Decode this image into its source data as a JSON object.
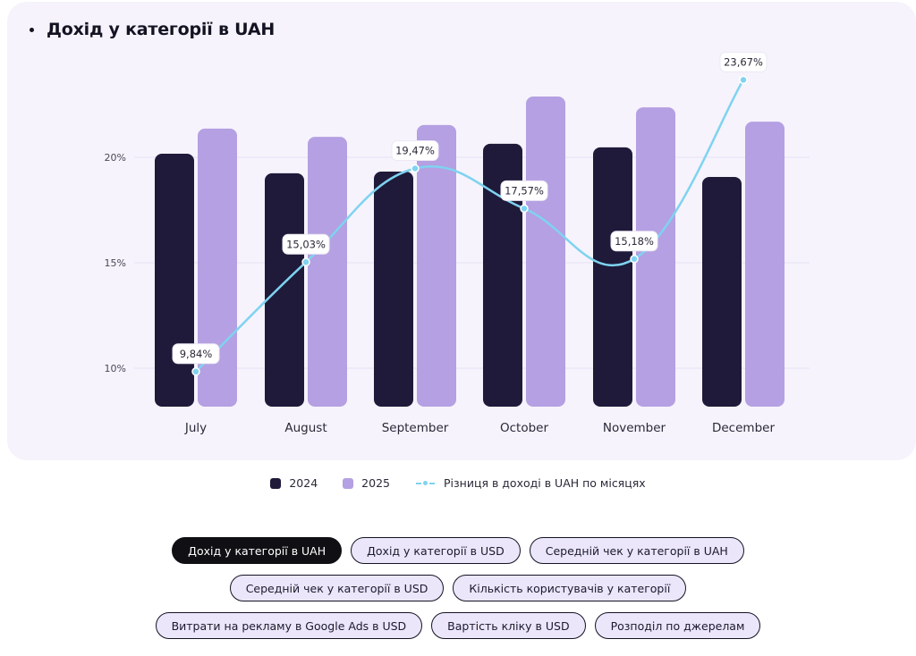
{
  "title": "Дохід у категорії в UAH",
  "chart_data": {
    "type": "bar",
    "title": "Дохід у категорії в UAH",
    "categories": [
      "July",
      "August",
      "September",
      "October",
      "November",
      "December"
    ],
    "series": [
      {
        "name": "2024",
        "kind": "bar",
        "color": "#1f1a3a",
        "values": [
          20.17,
          19.24,
          19.32,
          20.64,
          20.47,
          19.07
        ],
        "note": "relative bar heights on shared axis"
      },
      {
        "name": "2025",
        "kind": "bar",
        "color": "#b4a0e2",
        "values": [
          21.36,
          20.97,
          21.53,
          22.88,
          22.37,
          21.69
        ],
        "note": "relative bar heights on shared axis"
      },
      {
        "name": "Різниця в доході в UAH по місяцях",
        "kind": "line",
        "color": "#7fd3f0",
        "values": [
          9.84,
          15.03,
          19.47,
          17.57,
          15.18,
          23.67
        ],
        "labels": [
          "9,84%",
          "15,03%",
          "19,47%",
          "17,57%",
          "15,18%",
          "23,67%"
        ]
      }
    ],
    "yticks": [
      "10%",
      "15%",
      "20%"
    ],
    "ytick_values": [
      10,
      15,
      20
    ],
    "ylim": [
      8.18,
      24
    ],
    "xlabel": "",
    "ylabel": "",
    "grid": true,
    "legend_position": "bottom"
  },
  "legend": {
    "items": [
      {
        "label": "2024",
        "color": "#1f1a3a"
      },
      {
        "label": "2025",
        "color": "#b4a0e2"
      },
      {
        "label": "Різниця в доході в UAH по місяцях",
        "color": "#7fd3f0"
      }
    ]
  },
  "tabs": {
    "rows": [
      [
        {
          "label": "Дохід у категорії в UAH",
          "active": true
        },
        {
          "label": "Дохід у категорії в USD",
          "active": false
        },
        {
          "label": "Середній чек у категорії в UAH",
          "active": false
        }
      ],
      [
        {
          "label": "Середній чек у категорії в USD",
          "active": false
        },
        {
          "label": "Кількість користувачів у категорії",
          "active": false
        }
      ],
      [
        {
          "label": "Витрати на рекламу в Google Ads в USD",
          "active": false
        },
        {
          "label": "Вартість кліку в USD",
          "active": false
        },
        {
          "label": "Розподіл по джерелам",
          "active": false
        }
      ]
    ]
  }
}
